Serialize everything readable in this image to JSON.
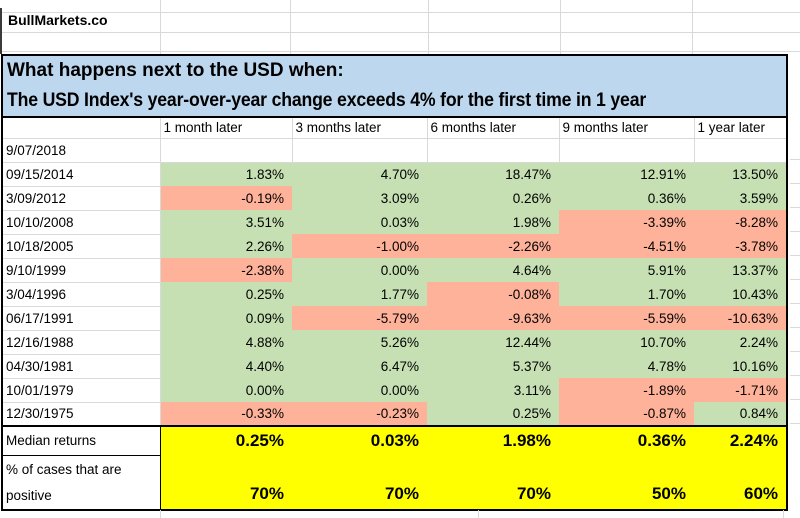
{
  "brand": "BullMarkets.co",
  "title": {
    "line1": "What happens next to the USD when:",
    "line2": "The USD Index's year-over-year change exceeds 4% for the first time in 1 year"
  },
  "table": {
    "columns": [
      "1 month later",
      "3 months later",
      "6 months later",
      "9 months later",
      "1 year later"
    ],
    "rows": [
      {
        "date": "9/07/2018",
        "values": [
          "",
          "",
          "",
          "",
          ""
        ]
      },
      {
        "date": "09/15/2014",
        "values": [
          "1.83%",
          "4.70%",
          "18.47%",
          "12.91%",
          "13.50%"
        ]
      },
      {
        "date": "3/09/2012",
        "values": [
          "-0.19%",
          "3.09%",
          "0.26%",
          "0.36%",
          "3.59%"
        ]
      },
      {
        "date": "10/10/2008",
        "values": [
          "3.51%",
          "0.03%",
          "1.98%",
          "-3.39%",
          "-8.28%"
        ]
      },
      {
        "date": "10/18/2005",
        "values": [
          "2.26%",
          "-1.00%",
          "-2.26%",
          "-4.51%",
          "-3.78%"
        ]
      },
      {
        "date": "9/10/1999",
        "values": [
          "-2.38%",
          "0.00%",
          "4.64%",
          "5.91%",
          "13.37%"
        ]
      },
      {
        "date": "3/04/1996",
        "values": [
          "0.25%",
          "1.77%",
          "-0.08%",
          "1.70%",
          "10.43%"
        ]
      },
      {
        "date": "06/17/1991",
        "values": [
          "0.09%",
          "-5.79%",
          "-9.63%",
          "-5.59%",
          "-10.63%"
        ]
      },
      {
        "date": "12/16/1988",
        "values": [
          "4.88%",
          "5.26%",
          "12.44%",
          "10.70%",
          "2.24%"
        ]
      },
      {
        "date": "04/30/1981",
        "values": [
          "4.40%",
          "6.47%",
          "5.37%",
          "4.78%",
          "10.16%"
        ]
      },
      {
        "date": "10/01/1979",
        "values": [
          "0.00%",
          "0.00%",
          "3.11%",
          "-1.89%",
          "-1.71%"
        ]
      },
      {
        "date": "12/30/1975",
        "values": [
          "-0.33%",
          "-0.23%",
          "0.25%",
          "-0.87%",
          "0.84%"
        ]
      }
    ],
    "footer": {
      "median_label": "Median returns",
      "median_values": [
        "0.25%",
        "0.03%",
        "1.98%",
        "0.36%",
        "2.24%"
      ],
      "positive_label": "% of cases that are positive",
      "positive_values": [
        "70%",
        "70%",
        "70%",
        "50%",
        "60%"
      ]
    }
  },
  "colors": {
    "positive": "#C6E0B4",
    "negative": "#FFB29A",
    "highlight": "#FFFF00",
    "title_bg": "#BDD7EE"
  }
}
